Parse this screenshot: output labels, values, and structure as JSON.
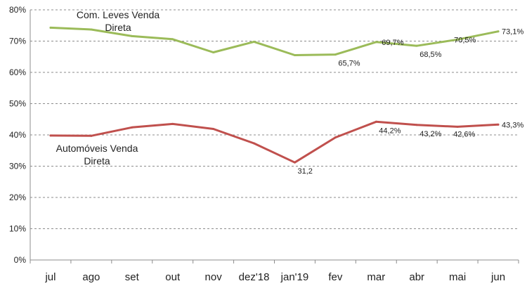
{
  "chart_data": {
    "type": "line",
    "title": "",
    "xlabel": "",
    "ylabel": "",
    "categories": [
      "jul",
      "ago",
      "set",
      "out",
      "nov",
      "dez'18",
      "jan'19",
      "fev",
      "mar",
      "abr",
      "mai",
      "jun"
    ],
    "ylim": [
      0,
      80
    ],
    "yticks": [
      0,
      10,
      20,
      30,
      40,
      50,
      60,
      70,
      80
    ],
    "ytick_labels": [
      "0%",
      "10%",
      "20%",
      "30%",
      "40%",
      "50%",
      "60%",
      "70%",
      "80%"
    ],
    "grid": "horizontal-dashed",
    "series": [
      {
        "name_lines": [
          "Com. Leves Venda",
          "Direta"
        ],
        "color": "#9bbb59",
        "values": [
          74.3,
          73.7,
          71.6,
          70.6,
          66.4,
          69.8,
          65.5,
          65.7,
          69.7,
          68.5,
          70.5,
          73.1
        ],
        "data_labels": [
          null,
          null,
          null,
          null,
          null,
          null,
          null,
          "65,7%",
          "69,7%",
          "68,5%",
          "70,5%",
          "73,1%"
        ]
      },
      {
        "name_lines": [
          "Automóveis Venda",
          "Direta"
        ],
        "color": "#c0504d",
        "values": [
          39.8,
          39.7,
          42.4,
          43.5,
          41.9,
          37.3,
          31.2,
          39.2,
          44.2,
          43.2,
          42.6,
          43.3
        ],
        "data_labels": [
          null,
          null,
          null,
          null,
          null,
          null,
          "31,2",
          null,
          "44,2%",
          "43,2%",
          "42,6%",
          "43,3%"
        ]
      }
    ]
  }
}
